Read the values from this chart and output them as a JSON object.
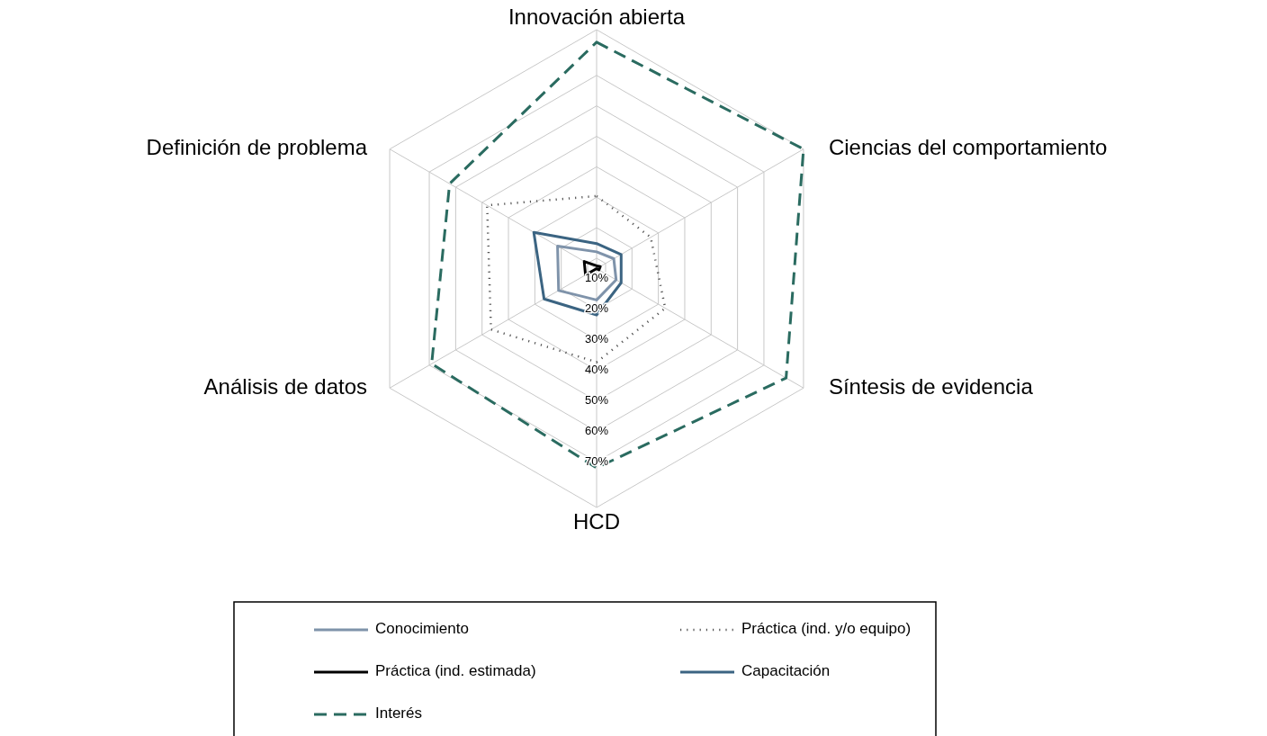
{
  "chart_data": {
    "type": "radar",
    "categories": [
      "Innovación abierta",
      "Ciencias del comportamiento",
      "Síntesis de evidencia",
      "HCD",
      "Análisis de datos",
      "Definición de problema"
    ],
    "ylim": [
      6.6,
      85
    ],
    "yticks": [
      {
        "value": 10,
        "label": "10%"
      },
      {
        "value": 20,
        "label": "20%"
      },
      {
        "value": 30,
        "label": "30%"
      },
      {
        "value": 40,
        "label": "40%"
      },
      {
        "value": 50,
        "label": "50%"
      },
      {
        "value": 60,
        "label": "60%"
      },
      {
        "value": 70,
        "label": "70%"
      }
    ],
    "grid": true,
    "legend": "bottom",
    "series": [
      {
        "name": "Conocimiento",
        "color": "#7f93aa",
        "line_style": "solid",
        "values": [
          12.1,
          13.1,
          14.0,
          16.9,
          21.0,
          21.4
        ]
      },
      {
        "name": "Práctica (ind. y/o equipo)",
        "color": "#555555",
        "line_style": "dotted",
        "values": [
          30.4,
          27.1,
          32.6,
          37.3,
          46.6,
          48.1
        ]
      },
      {
        "name": "Práctica (ind. estimada)",
        "color": "#000000",
        "line_style": "solid",
        "values": [
          7.5,
          8.0,
          7.5,
          6.6,
          10.8,
          11.3
        ]
      },
      {
        "name": "Capacitación",
        "color": "#3b6482",
        "line_style": "solid",
        "values": [
          14.8,
          15.9,
          15.9,
          21.8,
          26.5,
          30.4
        ]
      },
      {
        "name": "Interés",
        "color": "#2a6b60",
        "line_style": "dashed",
        "values": [
          80.9,
          85,
          78.4,
          72.0,
          69.1,
          62.3
        ]
      }
    ]
  }
}
